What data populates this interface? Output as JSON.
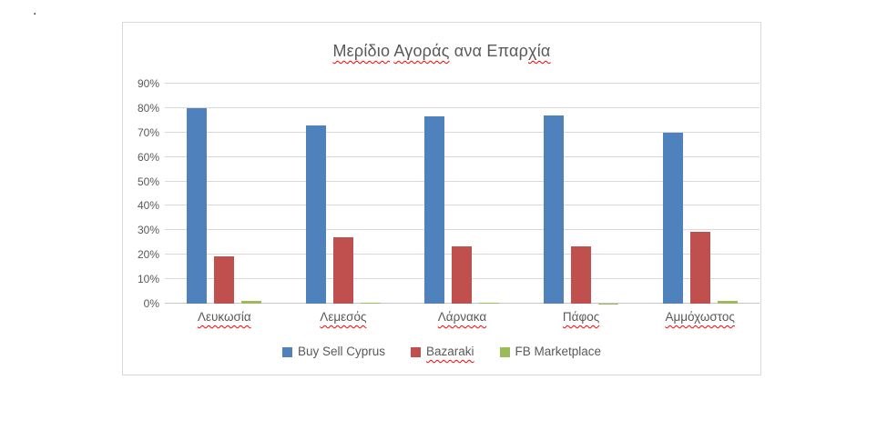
{
  "page": {
    "stray_character": "."
  },
  "chart": {
    "title": {
      "seg_meridio": "Μερίδιο",
      "seg_agoras": "Αγοράς",
      "seg_ana": "ανα",
      "seg_epar": "Επαρ",
      "seg_chia": "χία"
    },
    "colors": {
      "title_text": "#595959",
      "axis_text": "#595959",
      "gridline": "#D9D9D9",
      "axis_line": "#C6C6C6",
      "frame_border": "#D9D9D9",
      "spellcheck": "#FF0000",
      "background": "#FFFFFF"
    }
  },
  "chart_data": {
    "type": "bar",
    "title": "Μερίδιο Αγοράς ανα Επαρχία",
    "xlabel": "",
    "ylabel": "",
    "unit": "%",
    "ylim": [
      0,
      90
    ],
    "grid": true,
    "legend_position": "bottom",
    "categories": [
      "Λευκωσία",
      "Λεμεσός",
      "Λάρνακα",
      "Πάφος",
      "Αμμόχωστος"
    ],
    "series": [
      {
        "name": "Buy Sell Cyprus",
        "color": "#4F81BD",
        "values": [
          80,
          73,
          76.5,
          77,
          70
        ]
      },
      {
        "name": "Bazaraki",
        "color": "#C0504D",
        "values": [
          19.5,
          27,
          23.5,
          23.5,
          29.5
        ]
      },
      {
        "name": "FB Marketplace",
        "color": "#9BBB59",
        "values": [
          1,
          0.5,
          0.5,
          0.2,
          1
        ]
      }
    ],
    "y_axis": {
      "min": 0,
      "max": 90,
      "tick_step": 10,
      "ticks": [
        "0%",
        "10%",
        "20%",
        "30%",
        "40%",
        "50%",
        "60%",
        "70%",
        "80%",
        "90%"
      ]
    },
    "misspelled_labels": [
      "Μερίδιο",
      "Αγοράς",
      "χία",
      "Λευκωσία",
      "Λεμεσός",
      "Λάρνακα",
      "Πάφος",
      "Αμμόχωστος",
      "Bazaraki"
    ]
  }
}
